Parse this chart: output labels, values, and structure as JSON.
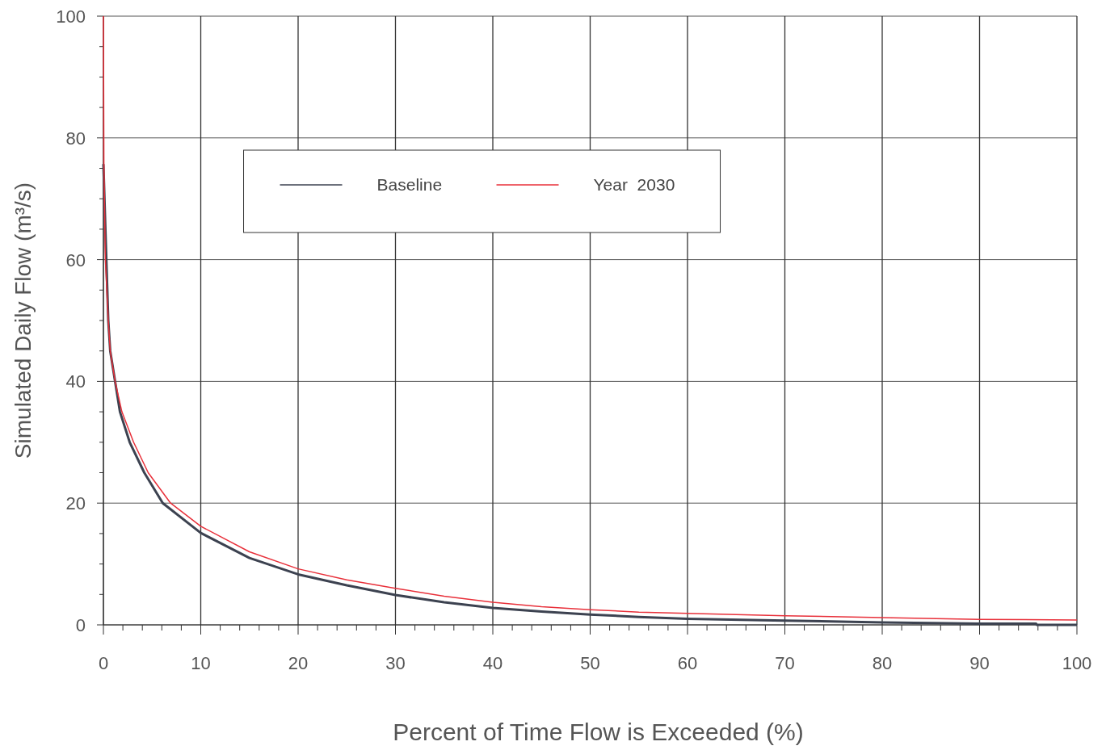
{
  "chart_data": {
    "type": "line",
    "xlabel": "Percent of Time Flow is Exceeded (%)",
    "ylabel": "Simulated Daily Flow (m³/s)",
    "xlim": [
      0,
      100
    ],
    "ylim": [
      0,
      100
    ],
    "xticks": [
      0,
      {
        "value": 2,
        "label": null
      },
      {
        "value": 4,
        "label": null
      },
      {
        "value": 6,
        "label": null
      },
      {
        "value": 8,
        "label": null
      },
      10,
      {
        "value": 12,
        "label": null
      },
      {
        "value": 14,
        "label": null
      },
      {
        "value": 16,
        "label": null
      },
      {
        "value": 18,
        "label": null
      },
      20,
      {
        "value": 22,
        "label": null
      },
      {
        "value": 24,
        "label": null
      },
      {
        "value": 26,
        "label": null
      },
      {
        "value": 28,
        "label": null
      },
      30,
      {
        "value": 32,
        "label": null
      },
      {
        "value": 34,
        "label": null
      },
      {
        "value": 36,
        "label": null
      },
      {
        "value": 38,
        "label": null
      },
      40,
      {
        "value": 42,
        "label": null
      },
      {
        "value": 44,
        "label": null
      },
      {
        "value": 46,
        "label": null
      },
      {
        "value": 48,
        "label": null
      },
      50,
      {
        "value": 52,
        "label": null
      },
      {
        "value": 54,
        "label": null
      },
      {
        "value": 56,
        "label": null
      },
      {
        "value": 58,
        "label": null
      },
      60,
      {
        "value": 62,
        "label": null
      },
      {
        "value": 64,
        "label": null
      },
      {
        "value": 66,
        "label": null
      },
      {
        "value": 68,
        "label": null
      },
      70,
      {
        "value": 72,
        "label": null
      },
      {
        "value": 74,
        "label": null
      },
      {
        "value": 76,
        "label": null
      },
      {
        "value": 78,
        "label": null
      },
      80,
      {
        "value": 82,
        "label": null
      },
      {
        "value": 84,
        "label": null
      },
      {
        "value": 86,
        "label": null
      },
      {
        "value": 88,
        "label": null
      },
      90,
      {
        "value": 92,
        "label": null
      },
      {
        "value": 94,
        "label": null
      },
      {
        "value": 96,
        "label": null
      },
      {
        "value": 98,
        "label": null
      },
      100
    ],
    "yticks": [
      0,
      {
        "value": 5,
        "label": null
      },
      {
        "value": 10,
        "label": null
      },
      {
        "value": 15,
        "label": null
      },
      20,
      {
        "value": 25,
        "label": null
      },
      {
        "value": 30,
        "label": null
      },
      {
        "value": 35,
        "label": null
      },
      40,
      {
        "value": 45,
        "label": null
      },
      {
        "value": 50,
        "label": null
      },
      {
        "value": 55,
        "label": null
      },
      60,
      {
        "value": 65,
        "label": null
      },
      {
        "value": 70,
        "label": null
      },
      {
        "value": 75,
        "label": null
      },
      80,
      {
        "value": 85,
        "label": null
      },
      {
        "value": 90,
        "label": null
      },
      {
        "value": 95,
        "label": null
      },
      100
    ],
    "grid": true,
    "legend": "top",
    "line_style": "solid",
    "marker": "none",
    "series": [
      {
        "name": "Baseline",
        "color": "#3c4250",
        "x": [
          0,
          0.3,
          0.5,
          0.7,
          1.2,
          1.7,
          2.7,
          4.2,
          6.1,
          10,
          15,
          20,
          25,
          30,
          35,
          40,
          45,
          50,
          55,
          60,
          70,
          80,
          90,
          95.8,
          95.9,
          100
        ],
        "values": [
          75.7,
          60,
          50,
          45,
          40,
          35,
          30,
          25,
          20,
          15.1,
          11,
          8.3,
          6.5,
          4.9,
          3.7,
          2.8,
          2.2,
          1.7,
          1.3,
          1.0,
          0.7,
          0.4,
          0.2,
          0.2,
          0,
          0
        ]
      },
      {
        "name": "Year  2030",
        "color": "#e8303a",
        "x": [
          0,
          0.05,
          0.2,
          0.5,
          0.7,
          1.2,
          1.9,
          3.1,
          4.6,
          6.9,
          10,
          15,
          20,
          25,
          30,
          35,
          40,
          45,
          50,
          55,
          60,
          70,
          80,
          90,
          100
        ],
        "values": [
          100,
          76,
          60,
          50,
          45,
          40,
          35,
          30,
          25,
          20,
          16.2,
          12,
          9.2,
          7.4,
          6.0,
          4.7,
          3.7,
          3.0,
          2.5,
          2.1,
          1.9,
          1.5,
          1.2,
          0.9,
          0.8
        ]
      }
    ]
  }
}
